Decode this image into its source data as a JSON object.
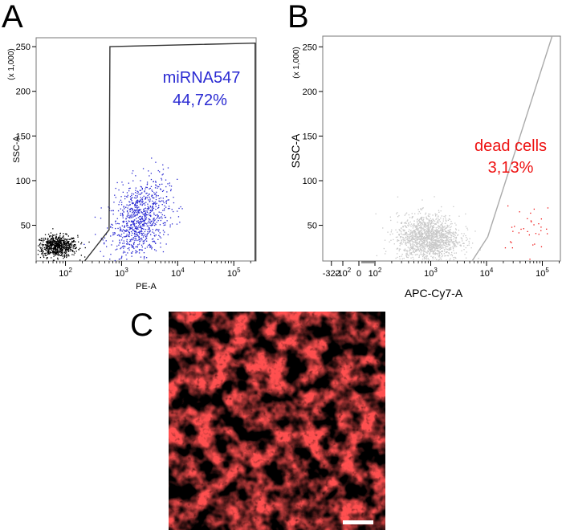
{
  "panels": {
    "a": {
      "letter": "A"
    },
    "b": {
      "letter": "B"
    },
    "c": {
      "letter": "C"
    }
  },
  "chart_data": [
    {
      "type": "scatter",
      "panel": "A",
      "xlabel": "PE-A",
      "ylabel": "SSC-A",
      "y_scale_note": "(x 1,000)",
      "x_scale": "log",
      "xlim": [
        30,
        250000
      ],
      "ylim": [
        10,
        260
      ],
      "x_ticks": [
        {
          "value": 100,
          "base": "10",
          "exp": "2"
        },
        {
          "value": 1000,
          "base": "10",
          "exp": "3"
        },
        {
          "value": 10000,
          "base": "10",
          "exp": "4"
        },
        {
          "value": 100000,
          "base": "10",
          "exp": "5"
        }
      ],
      "y_ticks": [
        "50",
        "100",
        "150",
        "200",
        "250"
      ],
      "colors": {
        "negative": "#000000",
        "gated": "#2a2ad2",
        "gate": "#333333"
      },
      "gate": {
        "label": "miRNA547",
        "percent": "44,72%",
        "color": "#2a2ad2",
        "polygon": [
          [
            220,
            10
          ],
          [
            600,
            45
          ],
          [
            620,
            250
          ],
          [
            240000,
            254
          ],
          [
            240000,
            10
          ]
        ]
      },
      "series": [
        {
          "role": "negative",
          "center_x": 70,
          "center_y": 27,
          "spread_x": 0.18,
          "spread_y": 6,
          "count": 700
        },
        {
          "role": "gated",
          "center_x": 2000,
          "center_y": 55,
          "spread_x": 0.26,
          "spread_y": 22,
          "count": 900
        }
      ]
    },
    {
      "type": "scatter",
      "panel": "B",
      "xlabel": "APC-Cy7-A",
      "ylabel": "SSC-A",
      "y_scale_note": "(x 1,000)",
      "x_scale": "biexponential",
      "xlim": [
        -322,
        250000
      ],
      "ylim": [
        10,
        262
      ],
      "x_ticks": [
        {
          "value": -322,
          "label": "-322"
        },
        {
          "value": -100,
          "base": "-10",
          "exp": "2"
        },
        {
          "value": 0,
          "label": "0"
        },
        {
          "value": 100,
          "base": "10",
          "exp": "2"
        },
        {
          "value": 1000,
          "base": "10",
          "exp": "3"
        },
        {
          "value": 10000,
          "base": "10",
          "exp": "4"
        },
        {
          "value": 100000,
          "base": "10",
          "exp": "5"
        }
      ],
      "y_ticks": [
        "50",
        "100",
        "150",
        "200",
        "250"
      ],
      "colors": {
        "live": "#c8c8c8",
        "dead": "#ee1111",
        "gate": "#aaaaaa"
      },
      "gate": {
        "label_line1": "dead cells",
        "label_line2": "3,13%",
        "color": "#ee1111",
        "polygon": [
          [
            5500,
            10
          ],
          [
            10500,
            37
          ],
          [
            150000,
            262
          ]
        ]
      },
      "series": [
        {
          "role": "live",
          "center_x": 900,
          "center_y": 36,
          "spread_x": 0.28,
          "spread_y": 13,
          "count": 1500
        },
        {
          "role": "dead",
          "center_x": 60000,
          "center_y": 45,
          "spread_x": 0.25,
          "spread_y": 14,
          "count": 34
        }
      ]
    }
  ],
  "micrograph": {
    "colors": {
      "background": "#000000",
      "stain": "#ff1a1a",
      "scale_bar": "#ffffff"
    }
  }
}
